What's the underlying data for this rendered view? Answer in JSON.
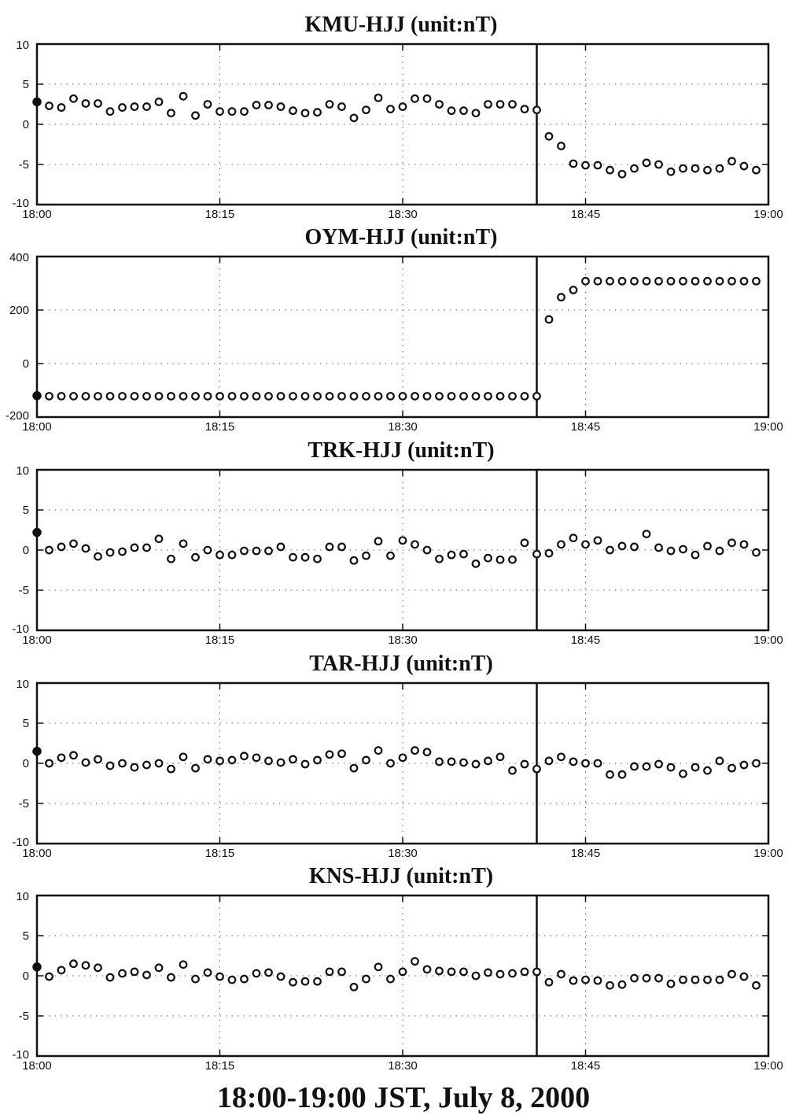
{
  "caption": "18:00-19:00 JST, July 8, 2000",
  "chart_data": [
    {
      "type": "scatter",
      "title": "KMU-HJJ (unit:nT)",
      "xlabel": "",
      "ylabel": "",
      "xlim": [
        "18:00",
        "19:00"
      ],
      "ylim": [
        -10,
        10
      ],
      "x_tick_labels": [
        "18:00",
        "18:15",
        "18:30",
        "18:45",
        "19:00"
      ],
      "y_tick_labels": [
        "10",
        "5",
        "0",
        "-5",
        "-10"
      ],
      "y_ticks": [
        10,
        5,
        0,
        -5,
        -10
      ],
      "grid": true,
      "event_time": "18:41",
      "x": [
        "18:00",
        "18:01",
        "18:02",
        "18:03",
        "18:04",
        "18:05",
        "18:06",
        "18:07",
        "18:08",
        "18:09",
        "18:10",
        "18:11",
        "18:12",
        "18:13",
        "18:14",
        "18:15",
        "18:16",
        "18:17",
        "18:18",
        "18:19",
        "18:20",
        "18:21",
        "18:22",
        "18:23",
        "18:24",
        "18:25",
        "18:26",
        "18:27",
        "18:28",
        "18:29",
        "18:30",
        "18:31",
        "18:32",
        "18:33",
        "18:34",
        "18:35",
        "18:36",
        "18:37",
        "18:38",
        "18:39",
        "18:40",
        "18:41",
        "18:42",
        "18:43",
        "18:44",
        "18:45",
        "18:46",
        "18:47",
        "18:48",
        "18:49",
        "18:50",
        "18:51",
        "18:52",
        "18:53",
        "18:54",
        "18:55",
        "18:56",
        "18:57",
        "18:58",
        "18:59"
      ],
      "y": [
        2.8,
        2.3,
        2.1,
        3.2,
        2.6,
        2.6,
        1.6,
        2.1,
        2.2,
        2.2,
        2.8,
        1.4,
        3.5,
        1.1,
        2.5,
        1.6,
        1.6,
        1.6,
        2.4,
        2.4,
        2.2,
        1.7,
        1.4,
        1.5,
        2.5,
        2.2,
        0.8,
        1.8,
        3.3,
        1.9,
        2.2,
        3.2,
        3.2,
        2.5,
        1.7,
        1.7,
        1.4,
        2.5,
        2.5,
        2.5,
        1.9,
        1.8,
        -1.5,
        -2.7,
        -4.9,
        -5.1,
        -5.1,
        -5.7,
        -6.2,
        -5.5,
        -4.8,
        -5.0,
        -5.9,
        -5.5,
        -5.5,
        -5.7,
        -5.5,
        -4.6,
        -5.2,
        -5.7
      ]
    },
    {
      "type": "scatter",
      "title": "OYM-HJJ (unit:nT)",
      "xlabel": "",
      "ylabel": "",
      "xlim": [
        "18:00",
        "19:00"
      ],
      "ylim": [
        -200,
        400
      ],
      "x_tick_labels": [
        "18:00",
        "18:15",
        "18:30",
        "18:45",
        "19:00"
      ],
      "y_tick_labels": [
        "400",
        "200",
        "0",
        "-200"
      ],
      "y_ticks": [
        400,
        200,
        0,
        -200
      ],
      "grid": true,
      "event_time": "18:41",
      "x": [
        "18:00",
        "18:01",
        "18:02",
        "18:03",
        "18:04",
        "18:05",
        "18:06",
        "18:07",
        "18:08",
        "18:09",
        "18:10",
        "18:11",
        "18:12",
        "18:13",
        "18:14",
        "18:15",
        "18:16",
        "18:17",
        "18:18",
        "18:19",
        "18:20",
        "18:21",
        "18:22",
        "18:23",
        "18:24",
        "18:25",
        "18:26",
        "18:27",
        "18:28",
        "18:29",
        "18:30",
        "18:31",
        "18:32",
        "18:33",
        "18:34",
        "18:35",
        "18:36",
        "18:37",
        "18:38",
        "18:39",
        "18:40",
        "18:41",
        "18:42",
        "18:43",
        "18:44",
        "18:45",
        "18:46",
        "18:47",
        "18:48",
        "18:49",
        "18:50",
        "18:51",
        "18:52",
        "18:53",
        "18:54",
        "18:55",
        "18:56",
        "18:57",
        "18:58",
        "18:59"
      ],
      "y": [
        -120,
        -122,
        -122,
        -122,
        -122,
        -122,
        -122,
        -122,
        -122,
        -122,
        -122,
        -122,
        -122,
        -122,
        -122,
        -122,
        -122,
        -122,
        -122,
        -122,
        -122,
        -122,
        -122,
        -122,
        -122,
        -122,
        -122,
        -122,
        -122,
        -122,
        -122,
        -122,
        -122,
        -122,
        -122,
        -122,
        -122,
        -122,
        -122,
        -122,
        -122,
        -122,
        165,
        248,
        275,
        308,
        308,
        308,
        308,
        308,
        308,
        308,
        308,
        308,
        308,
        308,
        308,
        308,
        308,
        308
      ]
    },
    {
      "type": "scatter",
      "title": "TRK-HJJ (unit:nT)",
      "xlabel": "",
      "ylabel": "",
      "xlim": [
        "18:00",
        "19:00"
      ],
      "ylim": [
        -10,
        10
      ],
      "x_tick_labels": [
        "18:00",
        "18:15",
        "18:30",
        "18:45",
        "19:00"
      ],
      "y_tick_labels": [
        "10",
        "5",
        "0",
        "-5",
        "-10"
      ],
      "y_ticks": [
        10,
        5,
        0,
        -5,
        -10
      ],
      "grid": true,
      "event_time": "18:41",
      "x": [
        "18:00",
        "18:01",
        "18:02",
        "18:03",
        "18:04",
        "18:05",
        "18:06",
        "18:07",
        "18:08",
        "18:09",
        "18:10",
        "18:11",
        "18:12",
        "18:13",
        "18:14",
        "18:15",
        "18:16",
        "18:17",
        "18:18",
        "18:19",
        "18:20",
        "18:21",
        "18:22",
        "18:23",
        "18:24",
        "18:25",
        "18:26",
        "18:27",
        "18:28",
        "18:29",
        "18:30",
        "18:31",
        "18:32",
        "18:33",
        "18:34",
        "18:35",
        "18:36",
        "18:37",
        "18:38",
        "18:39",
        "18:40",
        "18:41",
        "18:42",
        "18:43",
        "18:44",
        "18:45",
        "18:46",
        "18:47",
        "18:48",
        "18:49",
        "18:50",
        "18:51",
        "18:52",
        "18:53",
        "18:54",
        "18:55",
        "18:56",
        "18:57",
        "18:58",
        "18:59"
      ],
      "y": [
        2.2,
        0.0,
        0.4,
        0.8,
        0.2,
        -0.8,
        -0.3,
        -0.2,
        0.3,
        0.3,
        1.4,
        -1.1,
        0.8,
        -0.9,
        0.0,
        -0.6,
        -0.6,
        -0.1,
        -0.1,
        -0.1,
        0.4,
        -0.9,
        -0.9,
        -1.1,
        0.4,
        0.4,
        -1.3,
        -0.7,
        1.1,
        -0.7,
        1.2,
        0.7,
        0.0,
        -1.1,
        -0.6,
        -0.5,
        -1.7,
        -1.0,
        -1.2,
        -1.2,
        0.9,
        -0.5,
        -0.4,
        0.7,
        1.5,
        0.7,
        1.2,
        0.0,
        0.5,
        0.4,
        2.0,
        0.3,
        -0.1,
        0.1,
        -0.6,
        0.5,
        -0.1,
        0.9,
        0.7,
        -0.3
      ]
    },
    {
      "type": "scatter",
      "title": "TAR-HJJ (unit:nT)",
      "xlabel": "",
      "ylabel": "",
      "xlim": [
        "18:00",
        "19:00"
      ],
      "ylim": [
        -10,
        10
      ],
      "x_tick_labels": [
        "18:00",
        "18:15",
        "18:30",
        "18:45",
        "19:00"
      ],
      "y_tick_labels": [
        "10",
        "5",
        "0",
        "-5",
        "-10"
      ],
      "y_ticks": [
        10,
        5,
        0,
        -5,
        -10
      ],
      "grid": true,
      "event_time": "18:41",
      "x": [
        "18:00",
        "18:01",
        "18:02",
        "18:03",
        "18:04",
        "18:05",
        "18:06",
        "18:07",
        "18:08",
        "18:09",
        "18:10",
        "18:11",
        "18:12",
        "18:13",
        "18:14",
        "18:15",
        "18:16",
        "18:17",
        "18:18",
        "18:19",
        "18:20",
        "18:21",
        "18:22",
        "18:23",
        "18:24",
        "18:25",
        "18:26",
        "18:27",
        "18:28",
        "18:29",
        "18:30",
        "18:31",
        "18:32",
        "18:33",
        "18:34",
        "18:35",
        "18:36",
        "18:37",
        "18:38",
        "18:39",
        "18:40",
        "18:41",
        "18:42",
        "18:43",
        "18:44",
        "18:45",
        "18:46",
        "18:47",
        "18:48",
        "18:49",
        "18:50",
        "18:51",
        "18:52",
        "18:53",
        "18:54",
        "18:55",
        "18:56",
        "18:57",
        "18:58",
        "18:59"
      ],
      "y": [
        1.5,
        0.0,
        0.7,
        1.0,
        0.1,
        0.5,
        -0.3,
        0.0,
        -0.5,
        -0.2,
        0.0,
        -0.7,
        0.8,
        -0.6,
        0.5,
        0.3,
        0.4,
        0.9,
        0.7,
        0.3,
        0.1,
        0.5,
        -0.1,
        0.4,
        1.1,
        1.2,
        -0.6,
        0.4,
        1.6,
        0.0,
        0.7,
        1.6,
        1.4,
        0.2,
        0.2,
        0.1,
        -0.1,
        0.3,
        0.8,
        -0.9,
        -0.1,
        -0.7,
        0.3,
        0.8,
        0.2,
        0.0,
        0.0,
        -1.4,
        -1.4,
        -0.4,
        -0.4,
        -0.1,
        -0.5,
        -1.3,
        -0.5,
        -0.9,
        0.3,
        -0.6,
        -0.2,
        0.0
      ]
    },
    {
      "type": "scatter",
      "title": "KNS-HJJ (unit:nT)",
      "xlabel": "",
      "ylabel": "",
      "xlim": [
        "18:00",
        "19:00"
      ],
      "ylim": [
        -10,
        10
      ],
      "x_tick_labels": [
        "18:00",
        "18:15",
        "18:30",
        "18:45",
        "19:00"
      ],
      "y_tick_labels": [
        "10",
        "5",
        "0",
        "-5",
        "-10"
      ],
      "y_ticks": [
        10,
        5,
        0,
        -5,
        -10
      ],
      "grid": true,
      "event_time": "18:41",
      "x": [
        "18:00",
        "18:01",
        "18:02",
        "18:03",
        "18:04",
        "18:05",
        "18:06",
        "18:07",
        "18:08",
        "18:09",
        "18:10",
        "18:11",
        "18:12",
        "18:13",
        "18:14",
        "18:15",
        "18:16",
        "18:17",
        "18:18",
        "18:19",
        "18:20",
        "18:21",
        "18:22",
        "18:23",
        "18:24",
        "18:25",
        "18:26",
        "18:27",
        "18:28",
        "18:29",
        "18:30",
        "18:31",
        "18:32",
        "18:33",
        "18:34",
        "18:35",
        "18:36",
        "18:37",
        "18:38",
        "18:39",
        "18:40",
        "18:41",
        "18:42",
        "18:43",
        "18:44",
        "18:45",
        "18:46",
        "18:47",
        "18:48",
        "18:49",
        "18:50",
        "18:51",
        "18:52",
        "18:53",
        "18:54",
        "18:55",
        "18:56",
        "18:57",
        "18:58",
        "18:59"
      ],
      "y": [
        1.1,
        -0.1,
        0.7,
        1.5,
        1.3,
        1.0,
        -0.2,
        0.3,
        0.5,
        0.1,
        1.0,
        -0.2,
        1.4,
        -0.4,
        0.4,
        -0.1,
        -0.5,
        -0.4,
        0.3,
        0.4,
        -0.1,
        -0.8,
        -0.7,
        -0.7,
        0.5,
        0.5,
        -1.4,
        -0.4,
        1.1,
        -0.4,
        0.5,
        1.8,
        0.8,
        0.6,
        0.5,
        0.5,
        0.0,
        0.4,
        0.2,
        0.3,
        0.5,
        0.5,
        -0.8,
        0.2,
        -0.6,
        -0.5,
        -0.6,
        -1.2,
        -1.1,
        -0.3,
        -0.3,
        -0.3,
        -1.0,
        -0.5,
        -0.5,
        -0.5,
        -0.5,
        0.2,
        -0.1,
        -1.2
      ]
    }
  ]
}
